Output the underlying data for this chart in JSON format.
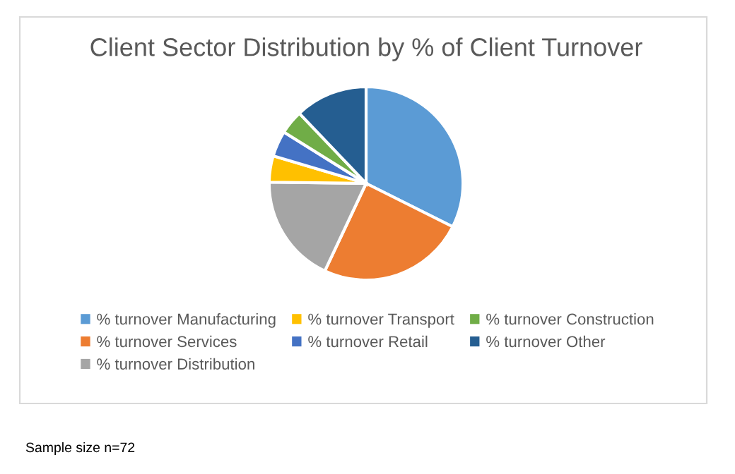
{
  "chart_data": {
    "type": "pie",
    "title": "Client Sector Distribution by % of Client Turnover",
    "categories": [
      "% turnover Manufacturing",
      "% turnover Services",
      "% turnover Distribution",
      "% turnover Transport",
      "% turnover Retail",
      "% turnover Construction",
      "% turnover Other"
    ],
    "values": [
      32.4,
      24.6,
      18.2,
      4.4,
      4.3,
      4.0,
      12.1
    ],
    "colors": [
      "#5b9bd5",
      "#ed7d31",
      "#a5a5a5",
      "#ffc000",
      "#4472c4",
      "#70ad47",
      "#255e91"
    ],
    "legend": "bottom",
    "annotations": [
      "Sample size n=72"
    ]
  }
}
